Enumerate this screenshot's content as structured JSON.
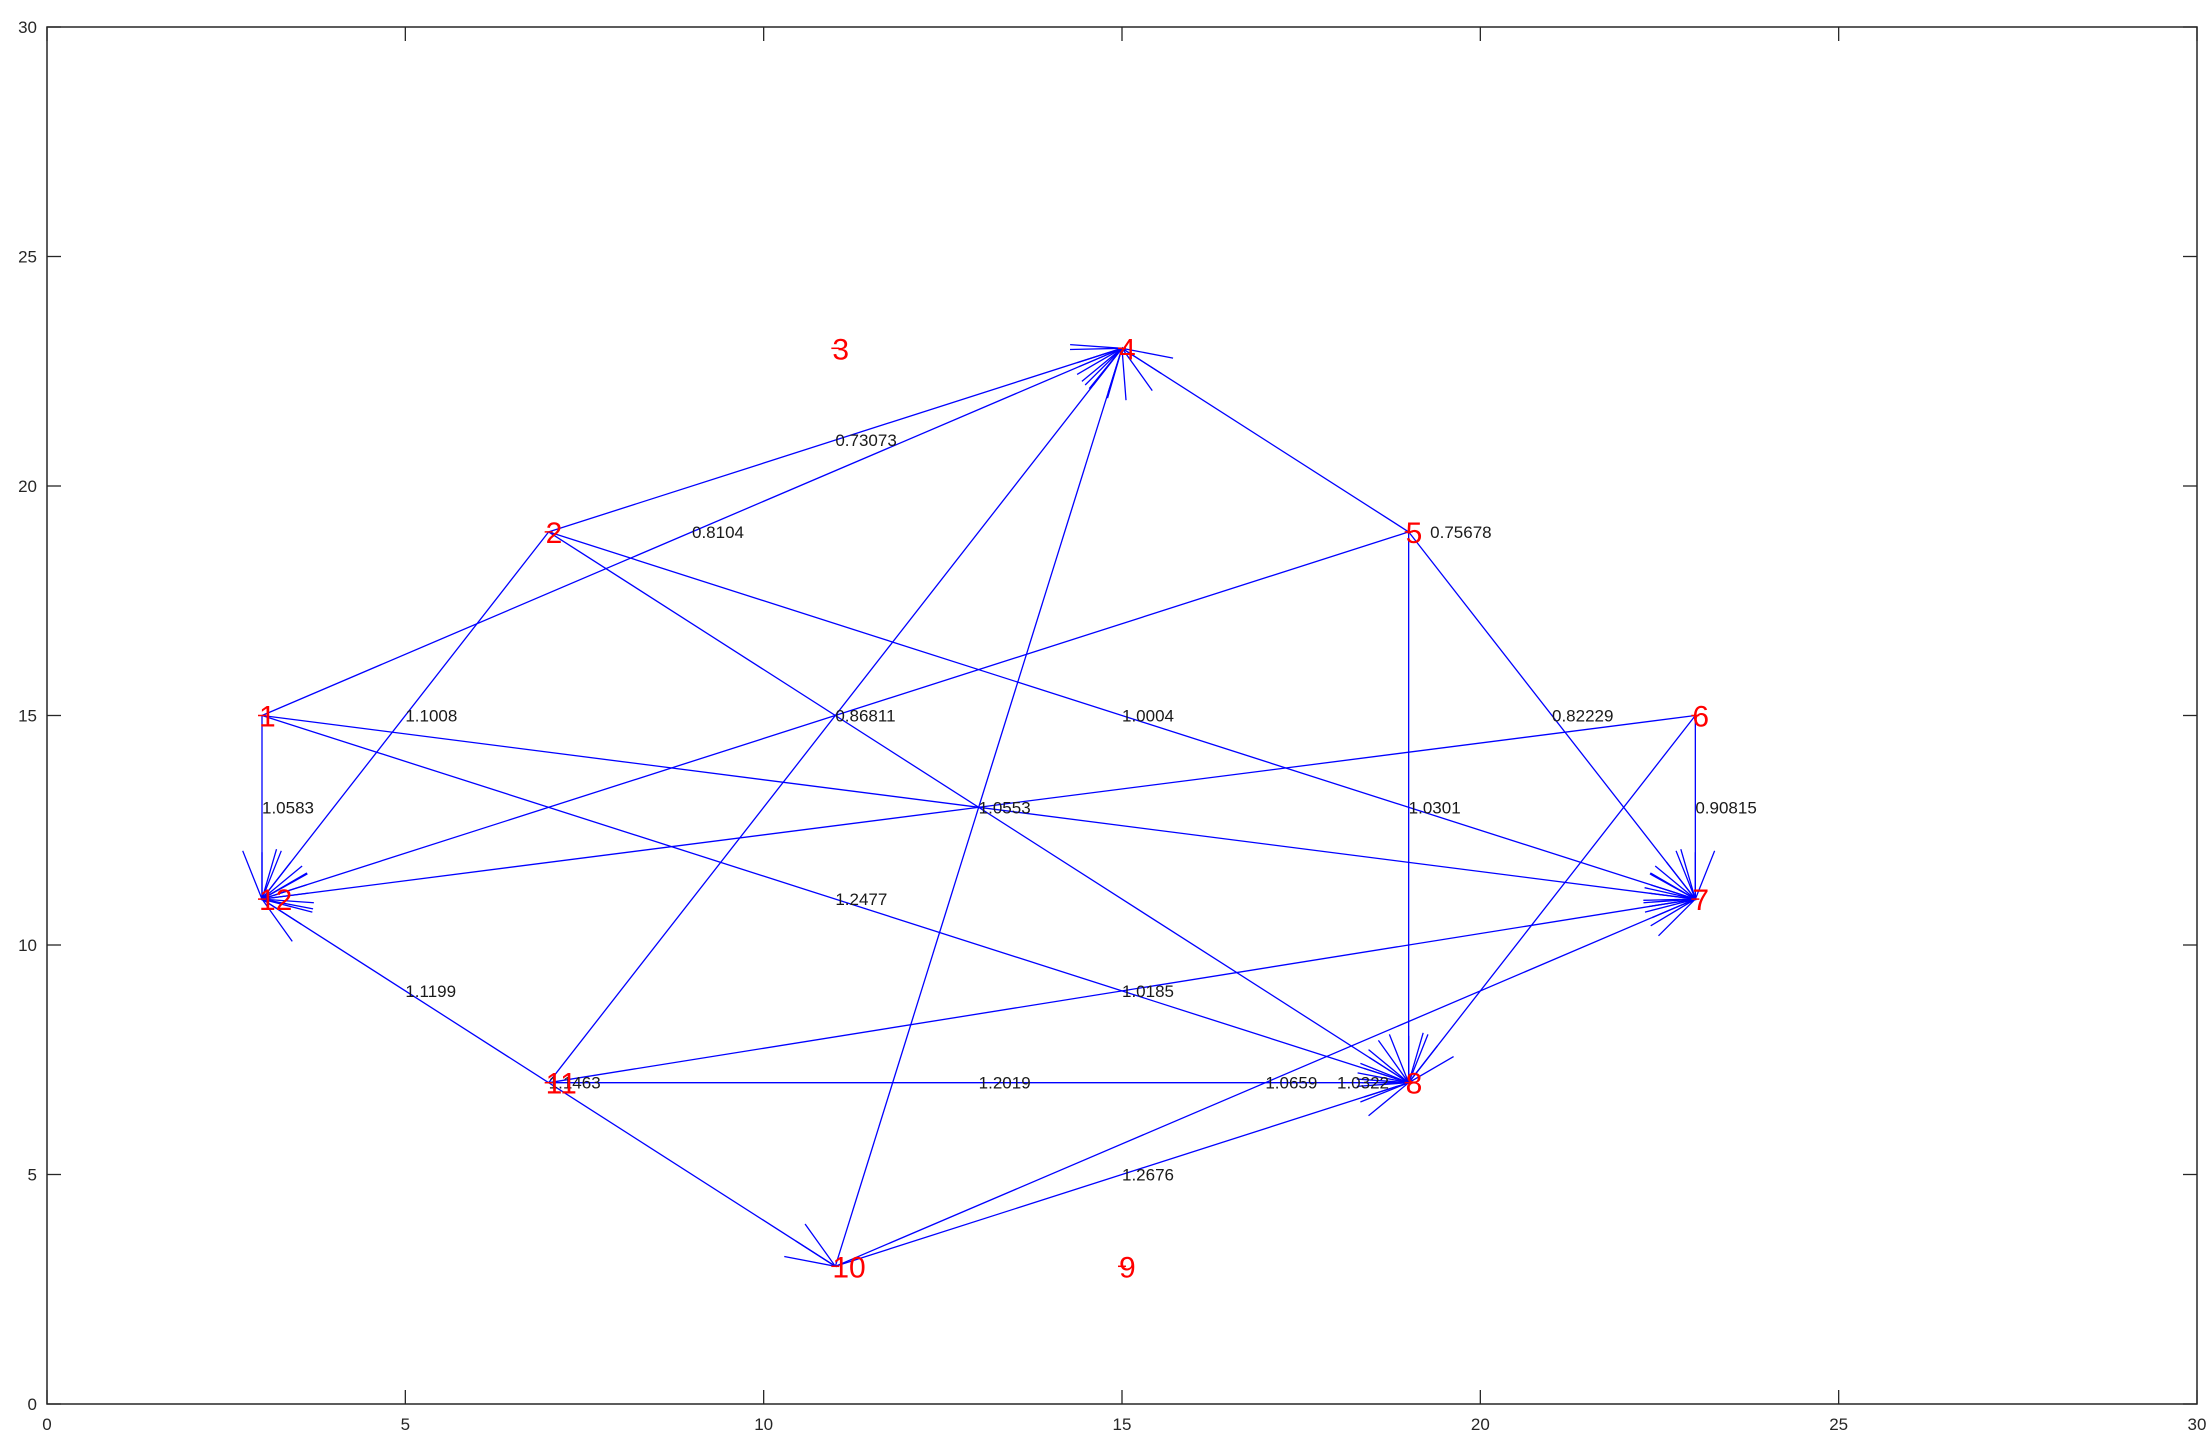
{
  "colors": {
    "edge": "#0000ff",
    "node_label": "#ff0000",
    "axis": "#262626",
    "background": "#ffffff"
  },
  "chart_data": {
    "type": "directed-graph",
    "xlim": [
      0,
      30
    ],
    "ylim": [
      0,
      30
    ],
    "xticks": [
      "0",
      "5",
      "10",
      "15",
      "20",
      "25",
      "30"
    ],
    "yticks": [
      "0",
      "5",
      "10",
      "15",
      "20",
      "25",
      "30"
    ],
    "grid": false,
    "nodes": [
      {
        "id": "1",
        "x": 3,
        "y": 15
      },
      {
        "id": "2",
        "x": 7,
        "y": 19
      },
      {
        "id": "3",
        "x": 11,
        "y": 23
      },
      {
        "id": "4",
        "x": 15,
        "y": 23
      },
      {
        "id": "5",
        "x": 19,
        "y": 19
      },
      {
        "id": "6",
        "x": 23,
        "y": 15
      },
      {
        "id": "7",
        "x": 23,
        "y": 11
      },
      {
        "id": "8",
        "x": 19,
        "y": 7
      },
      {
        "id": "9",
        "x": 15,
        "y": 3
      },
      {
        "id": "10",
        "x": 11,
        "y": 3
      },
      {
        "id": "11",
        "x": 7,
        "y": 7
      },
      {
        "id": "12",
        "x": 3,
        "y": 11
      }
    ],
    "edges": [
      {
        "from": "2",
        "to": "4",
        "weight": "0.73073"
      },
      {
        "from": "1",
        "to": "4",
        "weight": "0.8104"
      },
      {
        "from": "5",
        "to": "4",
        "weight": ""
      },
      {
        "from": "5",
        "to": "7",
        "weight": "0.82229"
      },
      {
        "from": "5",
        "to": "8",
        "weight": "1.0301"
      },
      {
        "from": "5",
        "to": "12",
        "weight": ""
      },
      {
        "from": "6",
        "to": "7",
        "weight": "0.90815"
      },
      {
        "from": "6",
        "to": "8",
        "weight": ""
      },
      {
        "from": "6",
        "to": "12",
        "weight": ""
      },
      {
        "from": "2",
        "to": "12",
        "weight": "1.1008"
      },
      {
        "from": "2",
        "to": "7",
        "weight": "1.0004"
      },
      {
        "from": "2",
        "to": "8",
        "weight": ""
      },
      {
        "from": "1",
        "to": "12",
        "weight": "1.0583"
      },
      {
        "from": "1",
        "to": "7",
        "weight": ""
      },
      {
        "from": "1",
        "to": "8",
        "weight": "1.2477"
      },
      {
        "from": "11",
        "to": "12",
        "weight": "1.1199"
      },
      {
        "from": "11",
        "to": "4",
        "weight": ""
      },
      {
        "from": "11",
        "to": "7",
        "weight": "1.0185"
      },
      {
        "from": "11",
        "to": "8",
        "weight": "1.2019"
      },
      {
        "from": "11",
        "to": "10",
        "weight": ""
      },
      {
        "from": "10",
        "to": "4",
        "weight": ""
      },
      {
        "from": "10",
        "to": "7",
        "weight": "1.0659"
      },
      {
        "from": "10",
        "to": "8",
        "weight": "1.2676"
      }
    ],
    "annotations": [
      {
        "text": "0.75678",
        "x": 19.3,
        "y": 19
      },
      {
        "text": "0.86811",
        "x": 11,
        "y": 15
      },
      {
        "text": "1.0553",
        "x": 13,
        "y": 13
      },
      {
        "text": "1.1463",
        "x": 7,
        "y": 7
      },
      {
        "text": "1.0322",
        "x": 18,
        "y": 7
      }
    ]
  }
}
